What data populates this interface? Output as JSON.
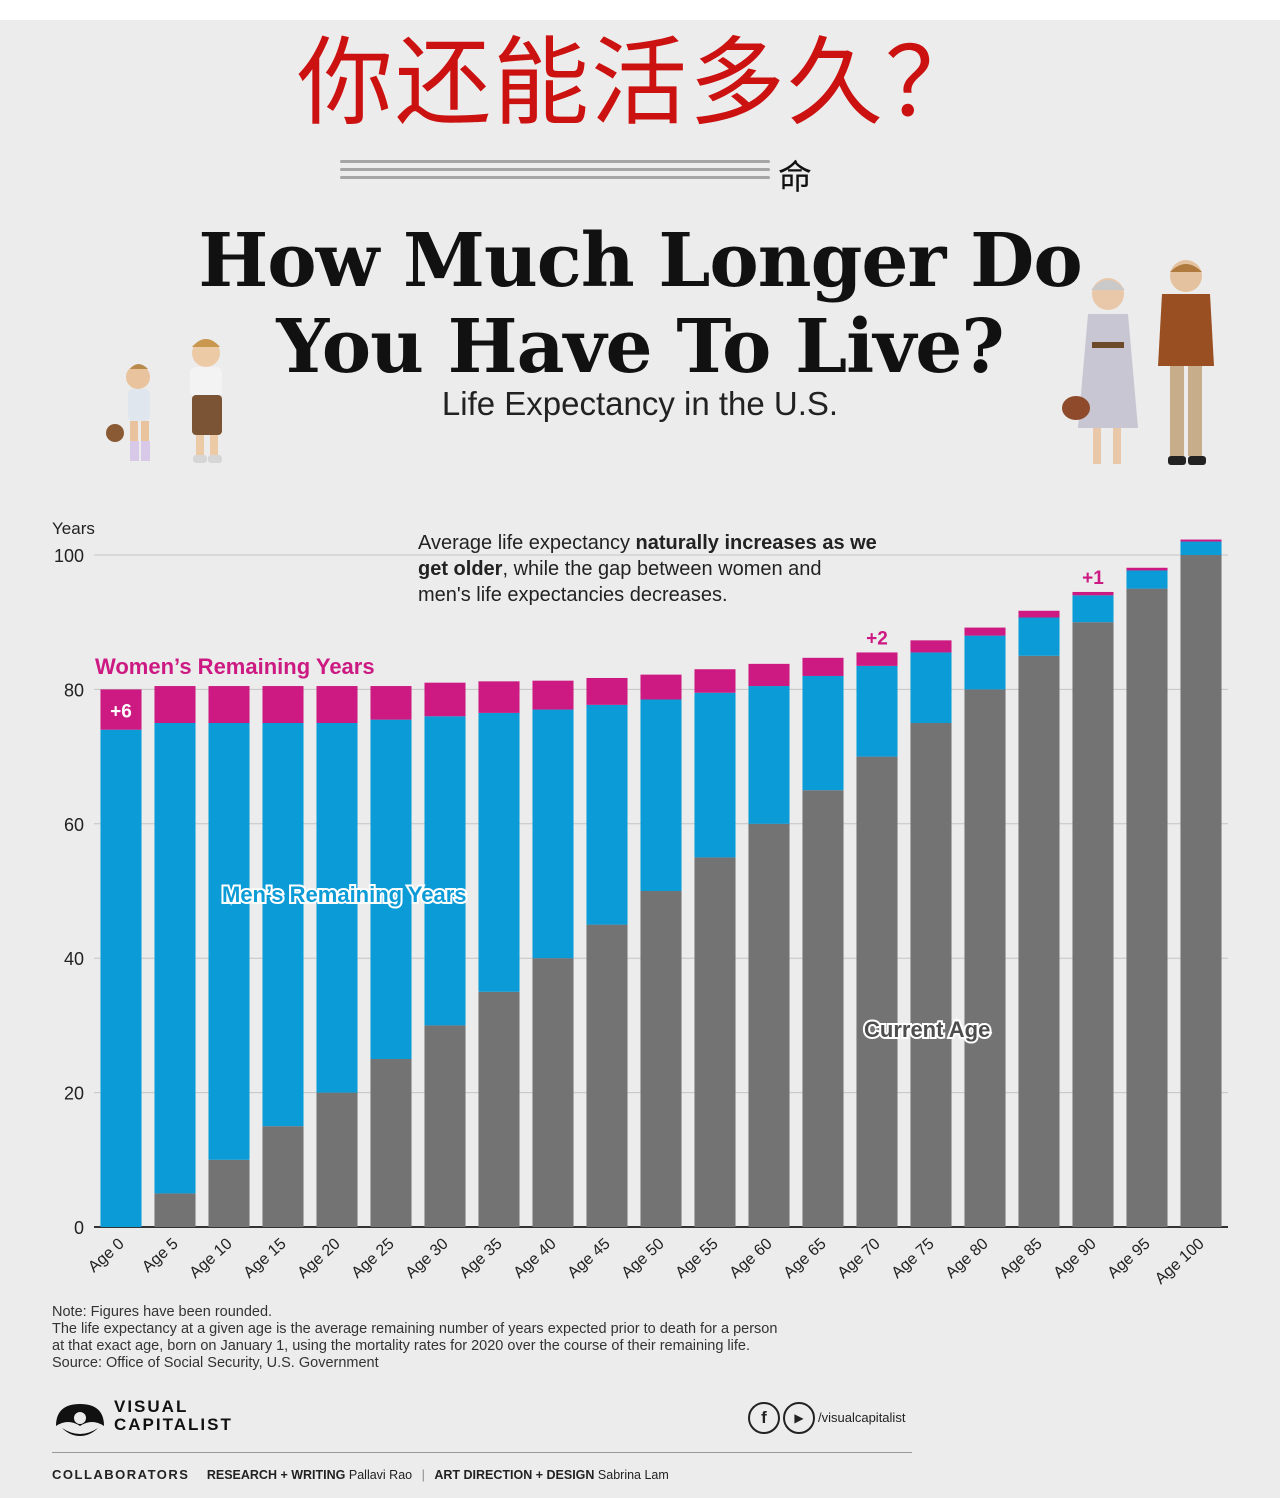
{
  "overlay": {
    "cn_title": "你还能活多久？",
    "cn_sub": "命"
  },
  "header": {
    "title_line1": "How Much Longer Do",
    "title_line2": "You Have To Live?",
    "subtitle": "Life Expectancy in the U.S."
  },
  "annotation": {
    "part1": "Average life expectancy ",
    "bold": "naturally increases as we get older",
    "part2": ", while the gap between women and men's life expectancies decreases."
  },
  "colors": {
    "current_age": "#737373",
    "men": "#0b9bd6",
    "women": "#cc1a82",
    "background": "#ececec"
  },
  "chart_data": {
    "type": "bar",
    "stacked": true,
    "ylabel": "Years",
    "ylim": [
      0,
      102
    ],
    "yticks": [
      0,
      20,
      40,
      60,
      80,
      100
    ],
    "categories": [
      "Age 0",
      "Age 5",
      "Age 10",
      "Age 15",
      "Age 20",
      "Age 25",
      "Age 30",
      "Age 35",
      "Age 40",
      "Age 45",
      "Age 50",
      "Age 55",
      "Age 60",
      "Age 65",
      "Age 70",
      "Age 75",
      "Age 80",
      "Age 85",
      "Age 90",
      "Age 95",
      "Age 100"
    ],
    "series": [
      {
        "name": "Current Age",
        "values": [
          0,
          5,
          10,
          15,
          20,
          25,
          30,
          35,
          40,
          45,
          50,
          55,
          60,
          65,
          70,
          75,
          80,
          85,
          90,
          95,
          100
        ]
      },
      {
        "name": "Men's Remaining Years",
        "values": [
          74,
          70,
          65,
          60,
          55,
          50.5,
          46,
          41.5,
          37,
          32.7,
          28.5,
          24.5,
          20.5,
          17,
          13.5,
          10.5,
          8,
          5.7,
          4,
          2.7,
          2
        ]
      },
      {
        "name": "Women's Remaining Years",
        "values": [
          6,
          5.5,
          5.5,
          5.5,
          5.5,
          5,
          5,
          4.7,
          4.3,
          4,
          3.7,
          3.5,
          3.3,
          2.7,
          2,
          1.8,
          1.2,
          1,
          0.5,
          0.4,
          0.3
        ]
      }
    ],
    "series_labels": {
      "current": "Current Age",
      "men": "Men’s Remaining Years",
      "women": "Women’s Remaining Years"
    },
    "gap_labels": [
      {
        "category": "Age 0",
        "text": "+6"
      },
      {
        "category": "Age 70",
        "text": "+2"
      },
      {
        "category": "Age 90",
        "text": "+1"
      }
    ]
  },
  "note": {
    "line1": "Note: Figures have been rounded.",
    "line2": "The life expectancy at a given age is the average remaining number of years expected prior to death for a person",
    "line3": "at that exact age, born on January 1, using the mortality rates for 2020 over the course of their remaining life.",
    "source": "Source: Office of Social Security, U.S. Government"
  },
  "brand": {
    "line1": "VISUAL",
    "line2": "CAPITALIST",
    "handle": "/visualcapitalist",
    "icon1": "f",
    "icon2": "▶"
  },
  "credits": {
    "heading": "COLLABORATORS",
    "role1": "RESEARCH + WRITING",
    "name1": "Pallavi Rao",
    "divider": "|",
    "role2": "ART DIRECTION + DESIGN",
    "name2": "Sabrina Lam"
  }
}
